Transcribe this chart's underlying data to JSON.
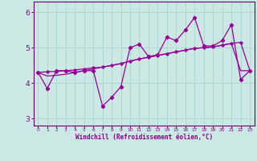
{
  "xlabel": "Windchill (Refroidissement éolien,°C)",
  "bg_color": "#cce8e4",
  "grid_color": "#aad8d4",
  "line_color": "#990099",
  "spine_color": "#660066",
  "tick_color": "#880088",
  "x_values": [
    0,
    1,
    2,
    3,
    4,
    5,
    6,
    7,
    8,
    9,
    10,
    11,
    12,
    13,
    14,
    15,
    16,
    17,
    18,
    19,
    20,
    21,
    22,
    23
  ],
  "y_main": [
    4.3,
    3.85,
    4.35,
    4.35,
    4.3,
    4.35,
    4.35,
    3.35,
    3.6,
    3.9,
    5.0,
    5.1,
    4.75,
    4.8,
    5.3,
    5.2,
    5.5,
    5.85,
    5.05,
    5.05,
    5.2,
    5.65,
    4.1,
    4.35
  ],
  "y_trend1": [
    4.3,
    4.32,
    4.33,
    4.35,
    4.37,
    4.4,
    4.43,
    4.45,
    4.5,
    4.55,
    4.62,
    4.68,
    4.73,
    4.78,
    4.83,
    4.88,
    4.93,
    4.98,
    5.0,
    5.02,
    5.07,
    5.12,
    5.15,
    4.35
  ],
  "y_trend2": [
    4.3,
    4.2,
    4.22,
    4.25,
    4.3,
    4.35,
    4.4,
    4.45,
    4.5,
    4.55,
    4.62,
    4.68,
    4.73,
    4.78,
    4.83,
    4.88,
    4.93,
    4.98,
    5.0,
    5.02,
    5.07,
    5.12,
    4.35,
    4.35
  ],
  "ylim": [
    2.8,
    6.3
  ],
  "yticks": [
    3,
    4,
    5,
    6
  ],
  "xlim": [
    -0.5,
    23.5
  ]
}
